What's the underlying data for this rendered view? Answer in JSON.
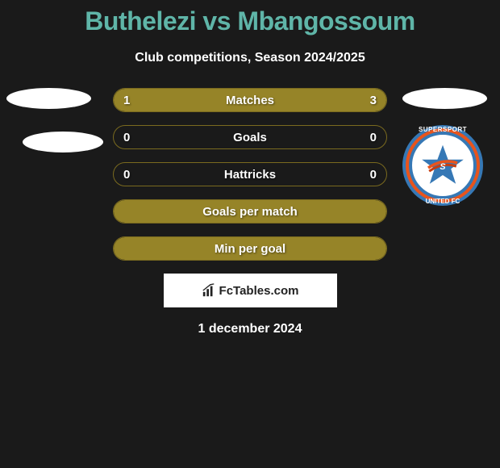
{
  "title": "Buthelezi vs Mbangossoum",
  "subtitle": "Club competitions, Season 2024/2025",
  "date": "1 december 2024",
  "fctables_label": "FcTables.com",
  "badge": {
    "top_text": "SUPERSPORT",
    "bottom_text": "UNITED FC",
    "outer_ring_color": "#3678b5",
    "accent_ring_color": "#e8541c",
    "star_fill": "#3678b5",
    "star_streak": "#e8541c"
  },
  "colors": {
    "background": "#1a1a1a",
    "title_color": "#5fb5a8",
    "text_color": "#ffffff",
    "bar_fill": "#968428",
    "bar_border": "#7a6a1f",
    "white": "#ffffff"
  },
  "bars": [
    {
      "label": "Matches",
      "left_value": "1",
      "right_value": "3",
      "left_pct": 25,
      "right_pct": 75
    },
    {
      "label": "Goals",
      "left_value": "0",
      "right_value": "0",
      "left_pct": 0,
      "right_pct": 0
    },
    {
      "label": "Hattricks",
      "left_value": "0",
      "right_value": "0",
      "left_pct": 0,
      "right_pct": 0
    },
    {
      "label": "Goals per match",
      "left_value": "",
      "right_value": "",
      "left_pct": 100,
      "right_pct": 0,
      "full": true
    },
    {
      "label": "Min per goal",
      "left_value": "",
      "right_value": "",
      "left_pct": 100,
      "right_pct": 0,
      "full": true
    }
  ]
}
